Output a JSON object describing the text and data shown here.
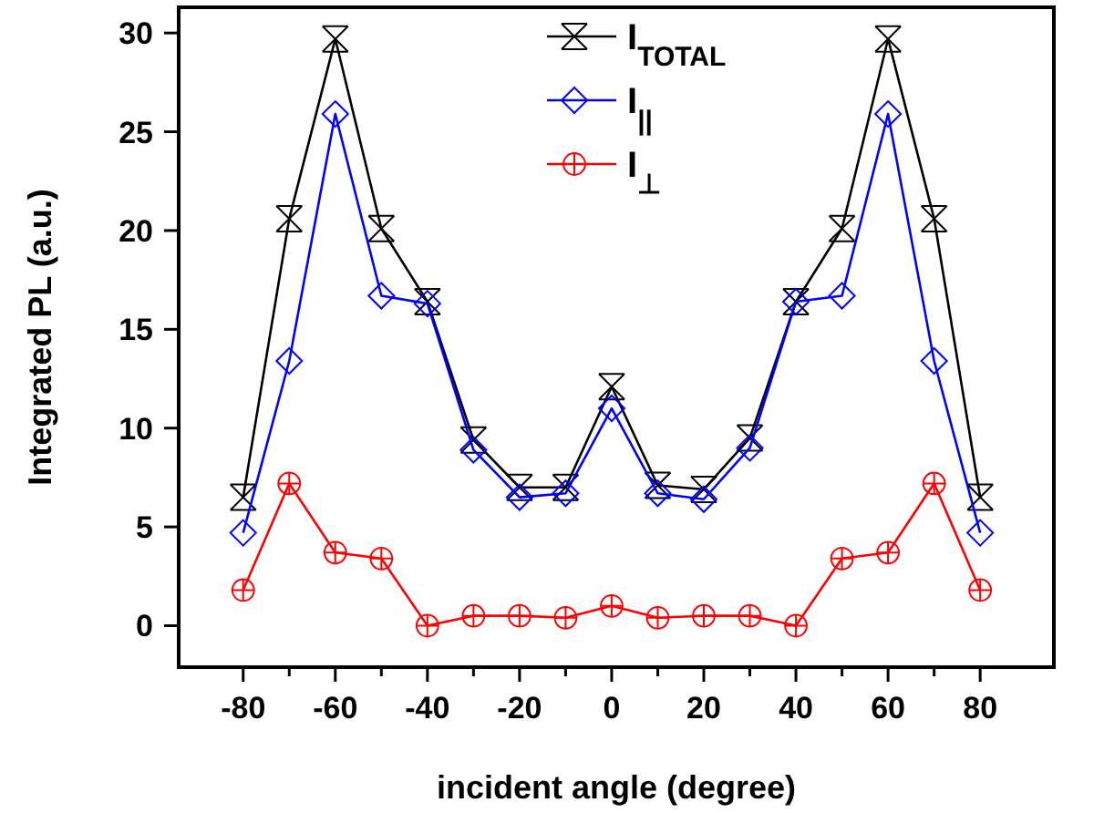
{
  "chart_data": {
    "type": "line",
    "xlabel": "incident angle (degree)",
    "ylabel": "Integrated PL (a.u.)",
    "x": [
      -80,
      -70,
      -60,
      -50,
      -40,
      -30,
      -20,
      -10,
      0,
      10,
      20,
      30,
      40,
      50,
      60,
      70,
      80
    ],
    "series": [
      {
        "name": "I$_{TOTAL}$",
        "color": "#000000",
        "marker": "cross",
        "values": [
          6.5,
          20.6,
          29.7,
          20.1,
          16.4,
          9.4,
          7.0,
          7.0,
          12.1,
          7.1,
          6.9,
          9.5,
          16.4,
          20.1,
          29.7,
          20.6,
          6.5
        ]
      },
      {
        "name": "I$_{||}$",
        "color": "#0000ff",
        "marker": "diamond",
        "values": [
          4.7,
          13.4,
          25.9,
          16.7,
          16.3,
          8.9,
          6.5,
          6.7,
          11.0,
          6.7,
          6.4,
          9.0,
          16.4,
          16.7,
          25.9,
          13.4,
          4.7
        ]
      },
      {
        "name": "I$_{⊥}$",
        "color": "#ff0000",
        "marker": "circle",
        "values": [
          1.8,
          7.2,
          3.7,
          3.4,
          0.0,
          0.5,
          0.5,
          0.4,
          1.0,
          0.4,
          0.5,
          0.5,
          0.0,
          3.4,
          3.7,
          7.2,
          1.8
        ]
      }
    ],
    "xlim": [
      -94,
      96
    ],
    "ylim": [
      -2.1,
      31.3
    ],
    "xticks": [
      -80,
      {
        "value": -70,
        "label": null
      },
      -60,
      {
        "value": -50,
        "label": null
      },
      -40,
      {
        "value": -30,
        "label": null
      },
      -20,
      {
        "value": -10,
        "label": null
      },
      0,
      {
        "value": 10,
        "label": null
      },
      20,
      {
        "value": 30,
        "label": null
      },
      40,
      {
        "value": 50,
        "label": null
      },
      60,
      {
        "value": 70,
        "label": null
      },
      80
    ],
    "yticks": [
      0,
      5,
      10,
      15,
      20,
      25,
      30
    ],
    "legend": "top",
    "grid": false,
    "line_style": "solid"
  }
}
